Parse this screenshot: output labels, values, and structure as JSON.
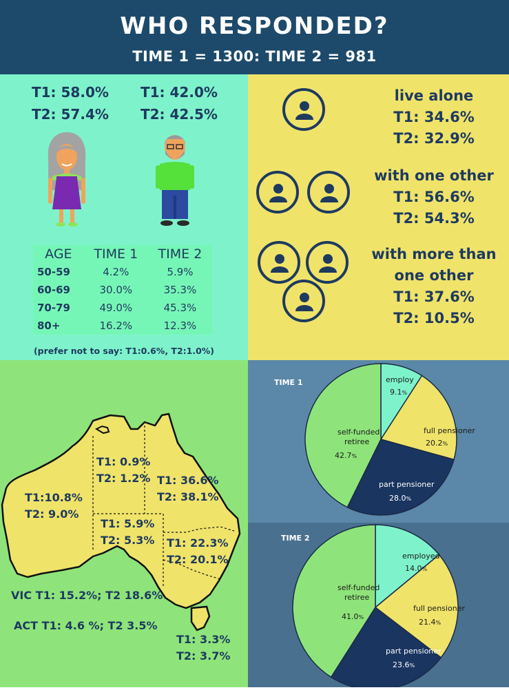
{
  "header": {
    "title": "WHO RESPONDED?",
    "subtitle": "TIME 1 = 1300: TIME 2 = 981"
  },
  "gender": {
    "female": {
      "t1": "T1: 58.0%",
      "t2": "T2: 57.4%"
    },
    "male": {
      "t1": "T1: 42.0%",
      "t2": "T2: 42.5%"
    }
  },
  "age_table": {
    "headers": [
      "AGE",
      "TIME 1",
      "TIME 2"
    ],
    "rows": [
      [
        "50-59",
        "4.2%",
        "5.9%"
      ],
      [
        "60-69",
        "30.0%",
        "35.3%"
      ],
      [
        "70-79",
        "49.0%",
        "45.3%"
      ],
      [
        "80+",
        "16.2%",
        "12.3%"
      ]
    ],
    "footnote": "(prefer not to say: T1:0.6%, T2:1.0%)"
  },
  "living": {
    "alone": {
      "label": "live alone",
      "t1": "T1: 34.6%",
      "t2": "T2: 32.9%"
    },
    "one_other": {
      "label": "with one other",
      "t1": "T1: 56.6%",
      "t2": "T2: 54.3%"
    },
    "more_than_one": {
      "label_line1": "with more than",
      "label_line2": "one other",
      "t1": "T1: 37.6%",
      "t2": "T2: 10.5%"
    }
  },
  "map": {
    "nt": {
      "t1": "T1: 0.9%",
      "t2": "T2: 1.2%"
    },
    "qld": {
      "t1": "T1: 36.6%",
      "t2": "T2: 38.1%"
    },
    "wa": {
      "t1": "T1:10.8%",
      "t2": "T2: 9.0%"
    },
    "sa": {
      "t1": "T1: 5.9%",
      "t2": "T2: 5.3%"
    },
    "nsw": {
      "t1": "T1: 22.3%",
      "t2": "T2: 20.1%"
    },
    "vic": "VIC T1: 15.2%; T2 18.6%",
    "act": "ACT T1: 4.6 %; T2 3.5%",
    "tas": {
      "t1": "T1: 3.3%",
      "t2": "T2: 3.7%"
    }
  },
  "colors": {
    "header": "#1d4a6b",
    "mint": "#7ef3cb",
    "yellow": "#efe36a",
    "green": "#8ee47a",
    "navy": "#1e3a5f",
    "pie_bg1": "#5b88a8",
    "pie_bg2": "#4a7090"
  },
  "chart_data": [
    {
      "type": "pie",
      "title": "TIME 1",
      "slices": [
        {
          "label": "employ",
          "value_text": "9.1",
          "value": 9.1,
          "color": "#7ef3cb"
        },
        {
          "label": "full pensioner",
          "value_text": "20.2",
          "value": 20.2,
          "color": "#efe36a"
        },
        {
          "label": "part pensioner",
          "value_text": "28.0",
          "value": 28.0,
          "color": "#1a3560"
        },
        {
          "label": "self-funded retiree",
          "value_text": "42.7",
          "value": 42.7,
          "color": "#8ee47a"
        }
      ]
    },
    {
      "type": "pie",
      "title": "TIME 2",
      "slices": [
        {
          "label": "employed",
          "value_text": "14.0",
          "value": 14.0,
          "color": "#7ef3cb"
        },
        {
          "label": "full pensioner",
          "value_text": "21.4",
          "value": 21.4,
          "color": "#efe36a"
        },
        {
          "label": "part pensioner",
          "value_text": "23.6",
          "value": 23.6,
          "color": "#1a3560"
        },
        {
          "label": "self-funded retiree",
          "value_text": "41.0",
          "value": 41.0,
          "color": "#8ee47a"
        }
      ]
    }
  ]
}
